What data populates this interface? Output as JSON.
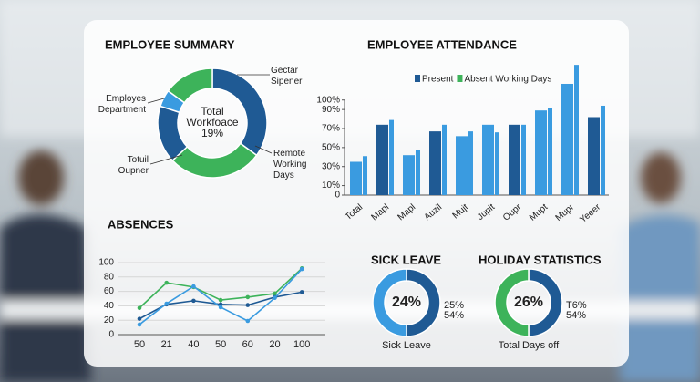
{
  "chart_data": [
    {
      "type": "donut",
      "title": "EMPLOYEE SUMMARY",
      "center_label": "Total Workfoace 19%",
      "categories": [
        "Gectar Sipener",
        "Remote Working Days",
        "Totuil Oupner",
        "Employes Department",
        null
      ],
      "values": [
        35,
        28,
        17,
        5,
        15
      ],
      "colors": [
        "#1f5a94",
        "#3db35a",
        "#1f5a94",
        "#3a9be0",
        "#3db35a"
      ]
    },
    {
      "type": "bar",
      "title": "EMPLOYEE ATTENDANCE",
      "categories": [
        "Total",
        "Mapl",
        "Mapl",
        "Auzil",
        "Mujt",
        "Juplt",
        "Oupr",
        "Mupt",
        "Mupr",
        "Yeeer"
      ],
      "series": [
        {
          "name": "Present",
          "color": "#1f5a94",
          "colors": [
            "#3a9be0",
            "#1f5a94",
            "#3a9be0",
            "#1f5a94",
            "#3a9be0",
            "#3a9be0",
            "#1f5a94",
            "#3a9be0",
            "#3a9be0",
            "#1f5a94"
          ],
          "values": [
            35,
            74,
            42,
            67,
            62,
            74,
            74,
            89,
            117,
            82
          ]
        },
        {
          "name": "Absent Working Days",
          "color": "#3a9be0",
          "legend_color": "#3db35a",
          "values": [
            41,
            79,
            47,
            74,
            67,
            66,
            74,
            92,
            137,
            94
          ]
        }
      ],
      "legend": "top",
      "ylim": [
        0,
        140
      ],
      "yticks": [
        0,
        {
          "value": 10,
          "label": "10%"
        },
        {
          "value": 30,
          "label": "30%"
        },
        {
          "value": 50,
          "label": "50%"
        },
        {
          "value": 70,
          "label": "70%"
        },
        {
          "value": 90,
          "label": "90%"
        },
        {
          "value": 100,
          "label": "100%"
        }
      ]
    },
    {
      "type": "line",
      "title": "ABSENCES",
      "categories": [
        "50",
        "21",
        "40",
        "50",
        "60",
        "20",
        "100"
      ],
      "series": [
        {
          "color": "#3db35a",
          "values": [
            37,
            72,
            66,
            48,
            52,
            57,
            92
          ]
        },
        {
          "color": "#1f5a94",
          "values": [
            22,
            42,
            47,
            42,
            41,
            52,
            59
          ]
        },
        {
          "color": "#3a9be0",
          "values": [
            14,
            43,
            67,
            38,
            19,
            51,
            91
          ]
        }
      ],
      "ylim": [
        0,
        100
      ],
      "yticks": [
        0,
        20,
        40,
        60,
        80,
        100
      ],
      "grid": true
    },
    {
      "type": "donut",
      "title": "SICK LEAVE",
      "center_label": "24%",
      "side_labels": [
        "25%",
        "54%"
      ],
      "footer": "Sick Leave",
      "values": [
        50,
        50
      ],
      "colors": [
        "#1f5a94",
        "#3a9be0"
      ]
    },
    {
      "type": "donut",
      "title": "HOLIDAY STATISTICS",
      "center_label": "26%",
      "side_labels": [
        "Τ6%",
        "54%"
      ],
      "footer": "Total Days off",
      "values": [
        50,
        50
      ],
      "colors": [
        "#1f5a94",
        "#3db35a"
      ]
    }
  ]
}
